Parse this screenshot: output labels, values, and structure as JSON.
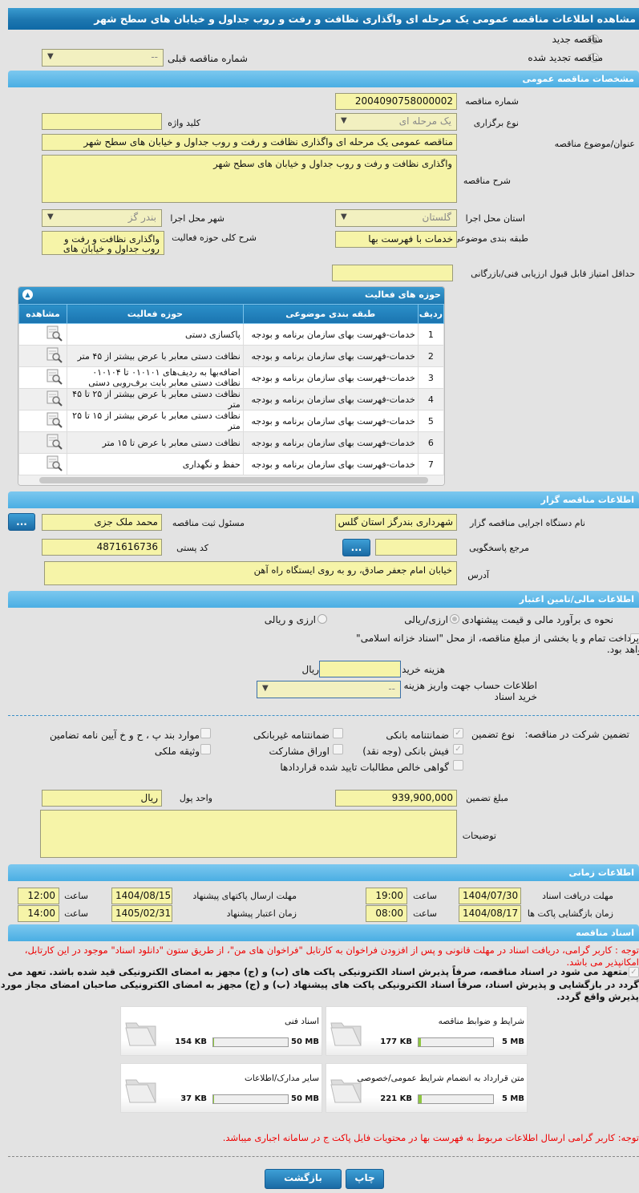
{
  "title": "مشاهده اطلاعات مناقصه عمومی یک مرحله ای واگذاری نظافت و رفت و روب جداول و خیابان های سطح شهر",
  "tender_type": {
    "new": "مناقصه جدید",
    "renewed": "مناقصه تجدید شده",
    "prev_label": "شماره مناقصه قبلی",
    "prev_value": "--"
  },
  "general": {
    "header": "مشخصات مناقصه عمومی",
    "number_label": "شماره مناقصه",
    "number": "2004090758000002",
    "kind_label": "نوع برگزاری",
    "kind": "یک مرحله ای",
    "keyword_label": "کلید واژه",
    "keyword": "",
    "subject_label": "عنوان/موضوع مناقصه",
    "subject": "مناقصه عمومی یک مرحله ای واگذاری نظافت و رفت و روب جداول و خیابان های سطح شهر",
    "desc_label": "شرح مناقصه",
    "desc": "واگذاری نظافت و رفت و روب جداول و خیابان های سطح شهر",
    "province_label": "استان محل اجرا",
    "province": "گلستان",
    "city_label": "شهر محل اجرا",
    "city": "بندر گز",
    "category_label": "طبقه بندی موضوعی",
    "category": "خدمات با فهرست بها",
    "scope_label": "شرح کلی حوزه فعالیت",
    "scope": "واگذاری نظافت و رفت و روب جداول و خیابان های",
    "min_score_label": "حداقل امتیاز قابل قبول ارزیابی فنی/بازرگانی",
    "min_score": ""
  },
  "activities": {
    "header": "حوزه های فعالیت",
    "columns": [
      "ردیف",
      "طبقه بندی موضوعی",
      "حوزه فعالیت",
      "مشاهده"
    ],
    "rows": [
      [
        "1",
        "خدمات-فهرست بهای سازمان برنامه و بودجه",
        "پاکسازی دستی"
      ],
      [
        "2",
        "خدمات-فهرست بهای سازمان برنامه و بودجه",
        "نظافت دستی معابر با عرض بیشتر از ۴۵ متر"
      ],
      [
        "3",
        "خدمات-فهرست بهای سازمان برنامه و بودجه",
        "اضافه‌بها به ردیف‌های ۰۱۰۱۰۱ تا ۰۱۰۱۰۴ نظافت دستی معابر بابت برف‌روبی دستی"
      ],
      [
        "4",
        "خدمات-فهرست بهای سازمان برنامه و بودجه",
        "نظافت دستی معابر با عرض بیشتر از ۲۵ تا ۴۵ متر"
      ],
      [
        "5",
        "خدمات-فهرست بهای سازمان برنامه و بودجه",
        "نظافت دستی معابر با عرض بیشتر از ۱۵ تا ۲۵ متر"
      ],
      [
        "6",
        "خدمات-فهرست بهای سازمان برنامه و بودجه",
        "نظافت دستی معابر با عرض تا ۱۵ متر"
      ],
      [
        "7",
        "خدمات-فهرست بهای سازمان برنامه و بودجه",
        "حفظ و نگهداری"
      ]
    ]
  },
  "organizer": {
    "header": "اطلاعات مناقصه گزار",
    "org_label": "نام دستگاه اجرایی مناقصه گزار",
    "org": "شهرداری بندرگز استان گلس",
    "resp_label": "مسئول ثبت مناقصه",
    "resp": "محمد ملک جزی",
    "ref_label": "مرجع پاسخگویی",
    "ref": "",
    "postal_label": "کد پستی",
    "postal": "4871616736",
    "address_label": "آدرس",
    "address": "خیابان امام جعفر صادق، رو به روی ایستگاه راه آهن",
    "more": "..."
  },
  "finance": {
    "header": "اطلاعات مالی/تامین اعتبار",
    "method_label": "نحوه ی برآورد مالی و قیمت پیشنهادی",
    "opt1": "ارزی/ریالی",
    "opt2": "ارزی و ریالی",
    "treasury": "پرداخت تمام و یا بخشی از مبلغ مناقصه، از محل \"اسناد خزانه اسلامی\" خواهد بود.",
    "doc_cost_label": "هزینه خرید اسناد",
    "doc_cost": "",
    "rial": "ریال",
    "account_label": "اطلاعات حساب جهت واریز هزینه خرید اسناد",
    "account": "--"
  },
  "guarantee": {
    "label": "تضمین شرکت در مناقصه:",
    "type_label": "نوع تضمین",
    "options": [
      {
        "label": "ضمانتنامه بانکی",
        "checked": true
      },
      {
        "label": "ضمانتنامه غیربانکی",
        "checked": false
      },
      {
        "label": "موارد بند پ ، ح و خ آیین نامه تضامین",
        "checked": false
      },
      {
        "label": "فیش بانکی (وجه نقد)",
        "checked": true
      },
      {
        "label": "اوراق مشارکت",
        "checked": false
      },
      {
        "label": "وثیقه ملکی",
        "checked": false
      },
      {
        "label": "گواهی خالص مطالبات تایید شده قراردادها",
        "checked": false
      }
    ],
    "amount_label": "مبلغ تضمین",
    "amount": "939,900,000",
    "currency_label": "واحد پول",
    "currency": "ریال",
    "notes_label": "توضیحات",
    "notes": ""
  },
  "timing": {
    "header": "اطلاعات زمانی",
    "time_label": "ساعت",
    "doc_receive_label": "مهلت دریافت اسناد",
    "doc_receive_date": "1404/07/30",
    "doc_receive_time": "19:00",
    "submit_label": "مهلت ارسال پاکتهای پیشنهاد",
    "submit_date": "1404/08/15",
    "submit_time": "12:00",
    "open_label": "زمان بازگشایی پاکت ها",
    "open_date": "1404/08/17",
    "open_time": "08:00",
    "validity_label": "زمان اعتبار پیشنهاد",
    "validity_date": "1405/02/31",
    "validity_time": "14:00"
  },
  "documents": {
    "header": "اسناد مناقصه",
    "note": "توجه : کاربر گرامی، دریافت اسناد در مهلت قانونی و پس از افزودن فراخوان به کارتابل \"فراخوان های من\"، از طریق ستون \"دانلود اسناد\" موجود در این کارتابل، امکانپذیر می باشد.",
    "commitment": "متعهد می شود در اسناد مناقصه، صرفاً پذیرش اسناد الکترونیکی پاکت های (ب) و (ج) مجهز به امضای الکترونیکی قید شده باشد. تعهد می گردد در بازگشایی و پذیرش اسناد، صرفاً اسناد الکترونیکی پاکت های پیشنهاد (ب) و (ج) مجهز به امضای الکترونیکی صاحبان امضای مجاز مورد پذیرش واقع گردد.",
    "files": [
      {
        "name": "شرایط و ضوابط مناقصه",
        "size": "177 KB",
        "max": "5 MB",
        "fill": 3.5
      },
      {
        "name": "اسناد فنی",
        "size": "154 KB",
        "max": "50 MB",
        "fill": 0.3
      },
      {
        "name": "متن قرارداد به انضمام شرایط عمومی/خصوصی",
        "size": "221 KB",
        "max": "5 MB",
        "fill": 4.3
      },
      {
        "name": "سایر مدارک/اطلاعات",
        "size": "37 KB",
        "max": "50 MB",
        "fill": 0.1
      }
    ],
    "note2": "توجه: کاربر گرامی ارسال اطلاعات مربوط به فهرست بها در محتویات فایل پاکت ج در سامانه اجباری میباشد."
  },
  "buttons": {
    "print": "چاپ",
    "back": "بازگشت"
  },
  "colors": {
    "header": "#1d77b0",
    "section": "#5fb8e6",
    "field": "#f6f4a8",
    "progress": "#8dc63f",
    "note": "#ee0000"
  }
}
